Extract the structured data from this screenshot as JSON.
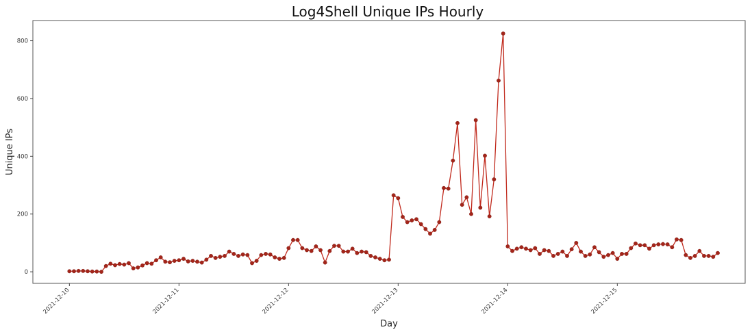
{
  "chart_data": {
    "type": "line",
    "title": "Log4Shell Unique IPs Hourly",
    "xlabel": "Day",
    "ylabel": "Unique IPs",
    "x_start": "2021-12-10",
    "x_step": "hourly",
    "x_ticks": [
      "2021-12-10",
      "2021-12-11",
      "2021-12-12",
      "2021-12-13",
      "2021-12-14",
      "2021-12-15"
    ],
    "y_ticks": [
      0,
      200,
      400,
      600,
      800
    ],
    "xlim": [
      "2021-12-09 16:00",
      "2021-12-16 04:00"
    ],
    "ylim": [
      -40,
      870
    ],
    "grid": false,
    "line_color": "#c0281b",
    "marker_color": "#a3251a",
    "series": [
      {
        "values": [
          2,
          2,
          3,
          3,
          2,
          1,
          1,
          0,
          20,
          28,
          23,
          27,
          25,
          30,
          12,
          15,
          22,
          30,
          28,
          40,
          50,
          35,
          33,
          38,
          40,
          45,
          36,
          38,
          35,
          32,
          42,
          55,
          48,
          52,
          55,
          70,
          62,
          55,
          60,
          58,
          30,
          38,
          58,
          62,
          60,
          50,
          45,
          48,
          82,
          110,
          110,
          82,
          75,
          72,
          88,
          75,
          32,
          72,
          90,
          90,
          70,
          70,
          80,
          65,
          70,
          68,
          55,
          50,
          45,
          40,
          42,
          265,
          255,
          190,
          172,
          178,
          182,
          165,
          148,
          132,
          145,
          172,
          290,
          288,
          385,
          515,
          232,
          258,
          200,
          525,
          222,
          402,
          192,
          320,
          662,
          825,
          88,
          72,
          80,
          85,
          80,
          75,
          82,
          62,
          75,
          72,
          55,
          62,
          70,
          55,
          78,
          100,
          70,
          55,
          60,
          85,
          68,
          52,
          58,
          65,
          45,
          62,
          62,
          82,
          98,
          92,
          92,
          80,
          92,
          95,
          96,
          95,
          85,
          112,
          110,
          58,
          48,
          55,
          72,
          55,
          55,
          52,
          65
        ]
      }
    ]
  }
}
